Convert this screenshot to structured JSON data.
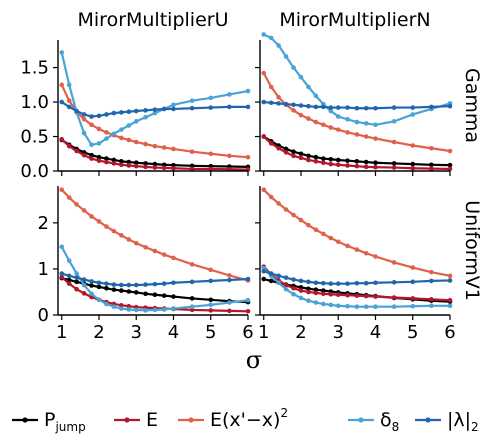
{
  "chart_data": {
    "type": "line",
    "facet_columns": [
      "MirorMultiplierU",
      "MirorMultiplierN"
    ],
    "facet_rows": [
      {
        "label": "Gamma",
        "ylim": [
          0,
          1.9
        ],
        "yticks": [
          0.0,
          0.5,
          1.0,
          1.5
        ],
        "yticklabels": [
          "0.0",
          "0.5",
          "1.0",
          "1.5"
        ]
      },
      {
        "label": "UniformV1",
        "ylim": [
          0,
          2.8
        ],
        "yticks": [
          0,
          1,
          2
        ],
        "yticklabels": [
          "0",
          "1",
          "2"
        ]
      }
    ],
    "xlim": [
      0.9,
      6.0
    ],
    "xticks": [
      1,
      2,
      3,
      4,
      5,
      6
    ],
    "xticklabels": [
      "1",
      "2",
      "3",
      "4",
      "5",
      "6"
    ],
    "xlabel": "σ",
    "x": [
      1.0,
      1.2,
      1.4,
      1.6,
      1.8,
      2.0,
      2.2,
      2.4,
      2.6,
      2.8,
      3.0,
      3.25,
      3.5,
      3.75,
      4.0,
      4.5,
      5.0,
      5.5,
      6.0
    ],
    "legend": {
      "position": "bottom",
      "entries": [
        {
          "key": "pjump",
          "label": "P",
          "sub": "jump",
          "sup": ""
        },
        {
          "key": "e",
          "label": "E",
          "sub": "",
          "sup": ""
        },
        {
          "key": "esq",
          "label": "E(x'−x)",
          "sub": "",
          "sup": "2"
        },
        {
          "key": "delta",
          "label": "δ",
          "sub": "8",
          "sup": ""
        },
        {
          "key": "lambda",
          "label": "|λ|",
          "sub": "2",
          "sup": ""
        }
      ]
    },
    "colors": {
      "pjump": "#000000",
      "e": "#b2182b",
      "esq": "#e0604a",
      "delta": "#4aa3d6",
      "lambda": "#2166ac"
    },
    "panels": [
      {
        "row": 0,
        "col": 0,
        "series": {
          "pjump": [
            0.45,
            0.38,
            0.32,
            0.27,
            0.23,
            0.2,
            0.18,
            0.16,
            0.14,
            0.13,
            0.12,
            0.11,
            0.1,
            0.09,
            0.085,
            0.075,
            0.07,
            0.065,
            0.06
          ],
          "e": [
            0.46,
            0.36,
            0.29,
            0.23,
            0.18,
            0.15,
            0.13,
            0.11,
            0.09,
            0.08,
            0.07,
            0.06,
            0.05,
            0.045,
            0.04,
            0.03,
            0.03,
            0.025,
            0.02
          ],
          "esq": [
            1.25,
            1.02,
            0.86,
            0.75,
            0.67,
            0.61,
            0.56,
            0.52,
            0.48,
            0.45,
            0.42,
            0.39,
            0.36,
            0.34,
            0.32,
            0.28,
            0.25,
            0.22,
            0.2
          ],
          "delta": [
            1.72,
            1.25,
            0.85,
            0.55,
            0.38,
            0.4,
            0.47,
            0.54,
            0.6,
            0.66,
            0.72,
            0.78,
            0.84,
            0.9,
            0.96,
            1.02,
            1.06,
            1.11,
            1.16
          ],
          "lambda": [
            1.0,
            0.93,
            0.87,
            0.82,
            0.79,
            0.8,
            0.82,
            0.84,
            0.85,
            0.86,
            0.87,
            0.88,
            0.89,
            0.9,
            0.9,
            0.91,
            0.92,
            0.93,
            0.93
          ]
        }
      },
      {
        "row": 0,
        "col": 1,
        "series": {
          "pjump": [
            0.5,
            0.43,
            0.37,
            0.32,
            0.28,
            0.25,
            0.22,
            0.2,
            0.18,
            0.17,
            0.16,
            0.15,
            0.14,
            0.13,
            0.12,
            0.11,
            0.1,
            0.09,
            0.085
          ],
          "e": [
            0.5,
            0.4,
            0.33,
            0.27,
            0.22,
            0.19,
            0.16,
            0.14,
            0.12,
            0.1,
            0.09,
            0.08,
            0.07,
            0.06,
            0.055,
            0.05,
            0.04,
            0.035,
            0.03
          ],
          "esq": [
            1.42,
            1.22,
            1.07,
            0.96,
            0.88,
            0.81,
            0.76,
            0.71,
            0.67,
            0.63,
            0.6,
            0.56,
            0.53,
            0.5,
            0.47,
            0.42,
            0.37,
            0.33,
            0.29
          ],
          "delta": [
            1.98,
            1.93,
            1.82,
            1.66,
            1.5,
            1.36,
            1.22,
            1.09,
            0.97,
            0.87,
            0.79,
            0.75,
            0.71,
            0.69,
            0.67,
            0.72,
            0.82,
            0.9,
            0.98
          ],
          "lambda": [
            1.0,
            0.99,
            0.98,
            0.97,
            0.96,
            0.95,
            0.94,
            0.93,
            0.93,
            0.92,
            0.92,
            0.92,
            0.91,
            0.91,
            0.91,
            0.92,
            0.92,
            0.93,
            0.94
          ]
        }
      },
      {
        "row": 1,
        "col": 0,
        "series": {
          "pjump": [
            0.8,
            0.76,
            0.72,
            0.68,
            0.64,
            0.61,
            0.58,
            0.55,
            0.53,
            0.51,
            0.49,
            0.46,
            0.44,
            0.42,
            0.4,
            0.36,
            0.33,
            0.3,
            0.28
          ],
          "e": [
            0.82,
            0.68,
            0.56,
            0.47,
            0.39,
            0.33,
            0.28,
            0.24,
            0.21,
            0.19,
            0.17,
            0.16,
            0.15,
            0.14,
            0.13,
            0.11,
            0.1,
            0.09,
            0.08
          ],
          "esq": [
            2.72,
            2.55,
            2.4,
            2.27,
            2.14,
            2.03,
            1.92,
            1.82,
            1.73,
            1.64,
            1.56,
            1.47,
            1.39,
            1.31,
            1.24,
            1.1,
            0.98,
            0.86,
            0.75
          ],
          "delta": [
            1.48,
            1.18,
            0.9,
            0.65,
            0.46,
            0.33,
            0.24,
            0.18,
            0.14,
            0.12,
            0.11,
            0.1,
            0.11,
            0.12,
            0.14,
            0.18,
            0.22,
            0.27,
            0.32
          ],
          "lambda": [
            0.9,
            0.85,
            0.81,
            0.77,
            0.73,
            0.7,
            0.68,
            0.66,
            0.65,
            0.65,
            0.65,
            0.66,
            0.67,
            0.68,
            0.7,
            0.72,
            0.74,
            0.76,
            0.78
          ]
        }
      },
      {
        "row": 1,
        "col": 1,
        "series": {
          "pjump": [
            0.78,
            0.74,
            0.7,
            0.66,
            0.63,
            0.6,
            0.57,
            0.55,
            0.53,
            0.51,
            0.49,
            0.47,
            0.45,
            0.43,
            0.41,
            0.37,
            0.34,
            0.31,
            0.29
          ],
          "e": [
            1.05,
            0.88,
            0.75,
            0.65,
            0.58,
            0.53,
            0.5,
            0.48,
            0.46,
            0.45,
            0.44,
            0.43,
            0.42,
            0.41,
            0.4,
            0.38,
            0.36,
            0.34,
            0.32
          ],
          "esq": [
            2.72,
            2.56,
            2.42,
            2.29,
            2.17,
            2.06,
            1.95,
            1.85,
            1.76,
            1.67,
            1.59,
            1.5,
            1.42,
            1.34,
            1.27,
            1.14,
            1.03,
            0.93,
            0.85
          ],
          "delta": [
            1.02,
            0.85,
            0.7,
            0.56,
            0.45,
            0.37,
            0.31,
            0.27,
            0.24,
            0.22,
            0.2,
            0.19,
            0.18,
            0.18,
            0.18,
            0.18,
            0.19,
            0.2,
            0.2
          ],
          "lambda": [
            0.95,
            0.9,
            0.85,
            0.81,
            0.77,
            0.74,
            0.72,
            0.7,
            0.69,
            0.68,
            0.68,
            0.68,
            0.69,
            0.69,
            0.7,
            0.71,
            0.72,
            0.74,
            0.75
          ]
        }
      }
    ]
  }
}
